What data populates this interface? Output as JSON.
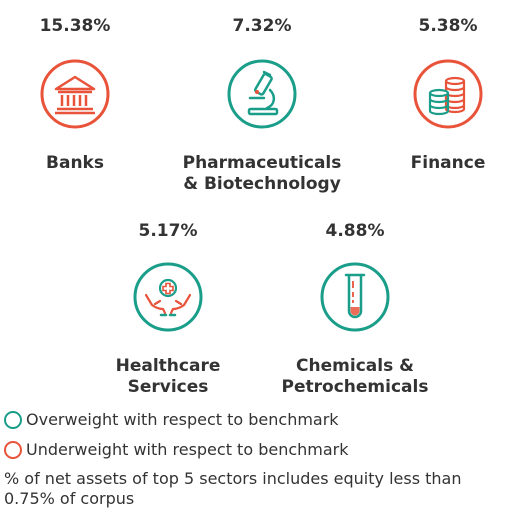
{
  "colors": {
    "overweight": "#1a9e8a",
    "underweight": "#e8533a",
    "text": "#333333"
  },
  "sectors": [
    {
      "percentage": "15.38%",
      "name_lines": [
        "Banks"
      ],
      "icon": "bank-icon",
      "weight": "underweight"
    },
    {
      "percentage": "7.32%",
      "name_lines": [
        "Pharmaceuticals",
        "& Biotechnology"
      ],
      "icon": "microscope-icon",
      "weight": "overweight"
    },
    {
      "percentage": "5.38%",
      "name_lines": [
        "Finance"
      ],
      "icon": "coins-icon",
      "weight": "underweight"
    },
    {
      "percentage": "5.17%",
      "name_lines": [
        "Healthcare",
        "Services"
      ],
      "icon": "healthcare-hands-icon",
      "weight": "overweight"
    },
    {
      "percentage": "4.88%",
      "name_lines": [
        "Chemicals &",
        "Petrochemicals"
      ],
      "icon": "test-tube-icon",
      "weight": "overweight"
    }
  ],
  "legend": {
    "overweight_label": "Overweight with respect to benchmark",
    "underweight_label": "Underweight with respect to benchmark"
  },
  "footnote": "% of net assets of top 5 sectors includes equity less than 0.75% of corpus"
}
